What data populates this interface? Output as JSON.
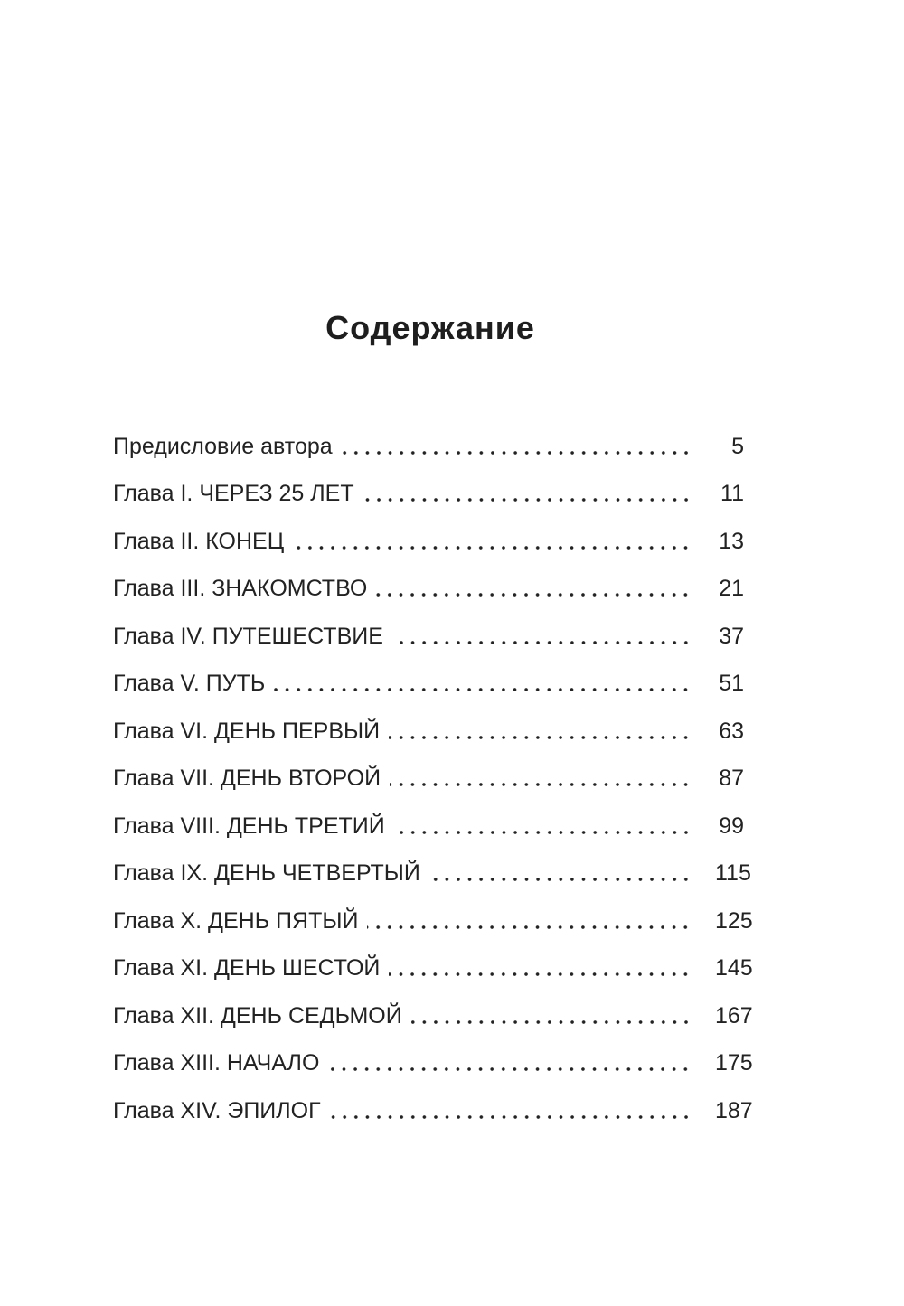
{
  "title": "Содержание",
  "entries": [
    {
      "label": "Предисловие автора",
      "page": "5"
    },
    {
      "label": "Глава I. ЧЕРЕЗ 25 ЛЕТ",
      "page": "11"
    },
    {
      "label": "Глава II. КОНЕЦ",
      "page": "13"
    },
    {
      "label": "Глава III. ЗНАКОМСТВО",
      "page": "21"
    },
    {
      "label": "Глава IV. ПУТЕШЕСТВИЕ",
      "page": "37"
    },
    {
      "label": "Глава V. ПУТЬ",
      "page": "51"
    },
    {
      "label": "Глава VI. ДЕНЬ ПЕРВЫЙ",
      "page": "63"
    },
    {
      "label": "Глава VII. ДЕНЬ ВТОРОЙ",
      "page": "87"
    },
    {
      "label": "Глава VIII. ДЕНЬ ТРЕТИЙ",
      "page": "99"
    },
    {
      "label": "Глава IX. ДЕНЬ ЧЕТВЕРТЫЙ",
      "page": "115"
    },
    {
      "label": "Глава X. ДЕНЬ ПЯТЫЙ",
      "page": "125"
    },
    {
      "label": "Глава XI. ДЕНЬ ШЕСТОЙ",
      "page": "145"
    },
    {
      "label": "Глава XII. ДЕНЬ СЕДЬМОЙ",
      "page": "167"
    },
    {
      "label": "Глава XIII. НАЧАЛО",
      "page": "175"
    },
    {
      "label": "Глава XIV. ЭПИЛОГ",
      "page": "187"
    }
  ]
}
